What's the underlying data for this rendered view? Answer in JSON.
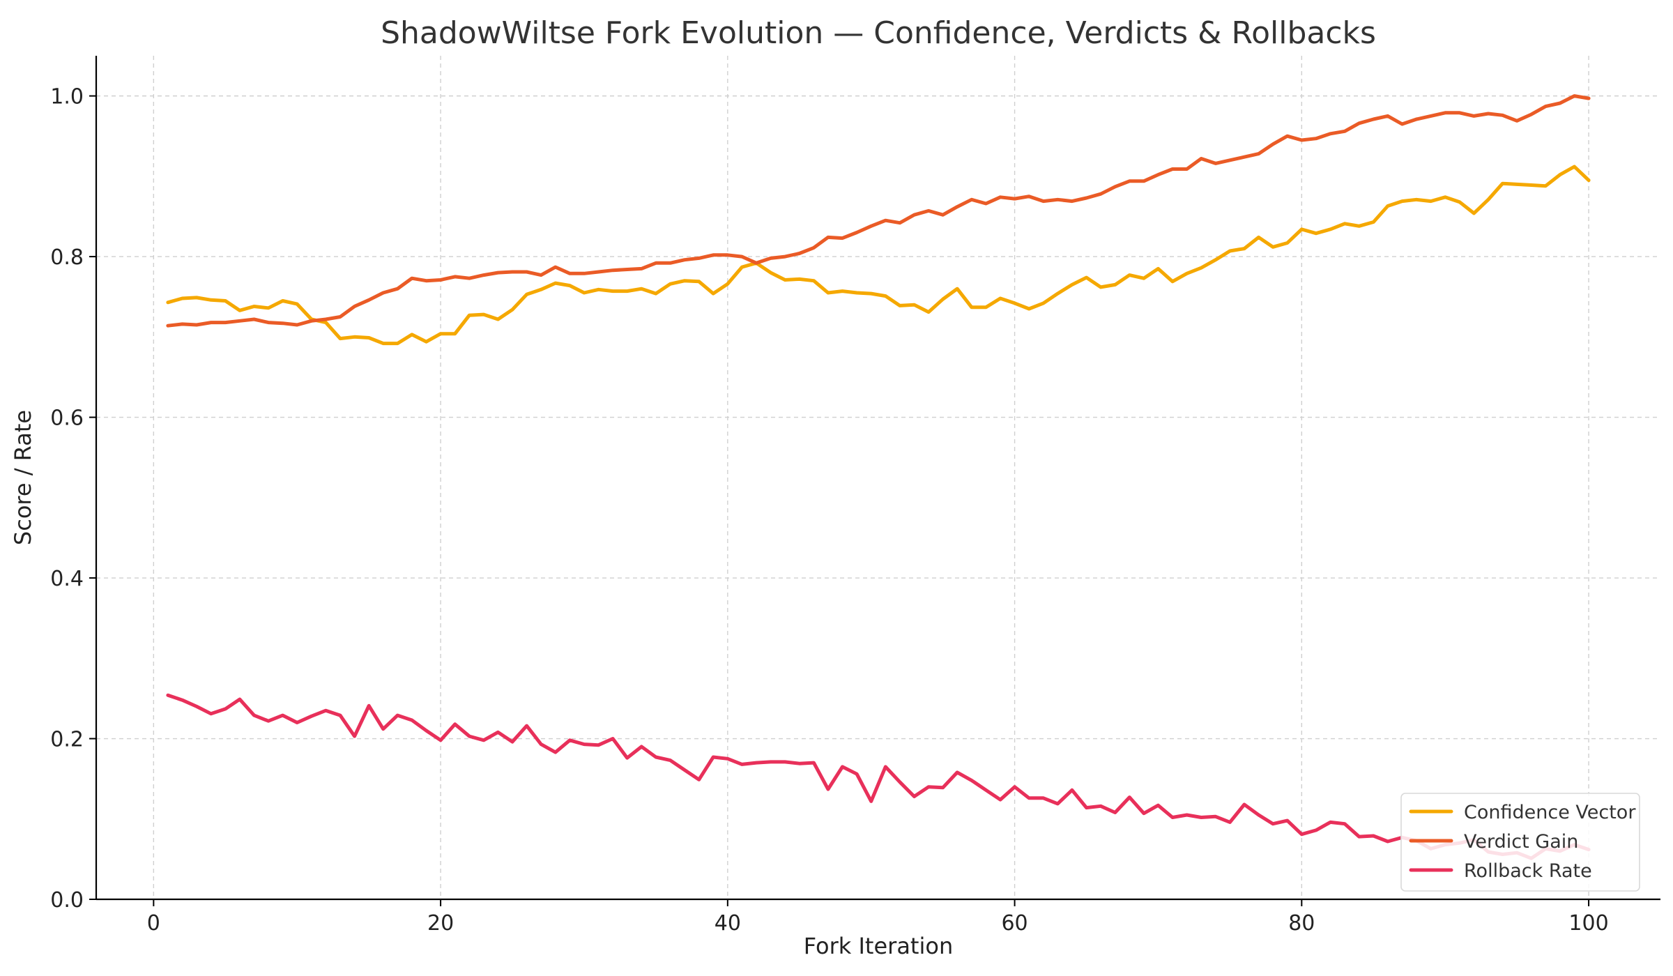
{
  "chart_data": {
    "type": "line",
    "title": "ShadowWiltse Fork Evolution — Confidence, Verdicts & Rollbacks",
    "xlabel": "Fork Iteration",
    "ylabel": "Score / Rate",
    "xlim": [
      -4,
      105
    ],
    "ylim": [
      0.0,
      1.05
    ],
    "xticks": [
      0,
      20,
      40,
      60,
      80,
      100
    ],
    "xtick_labels": [
      "0",
      "20",
      "40",
      "60",
      "80",
      "100"
    ],
    "yticks": [
      0.0,
      0.2,
      0.4,
      0.6,
      0.8,
      1.0
    ],
    "ytick_labels": [
      "0.0",
      "0.2",
      "0.4",
      "0.6",
      "0.8",
      "1.0"
    ],
    "grid": true,
    "legend_position": "lower-right",
    "x": [
      1,
      2,
      3,
      4,
      5,
      6,
      7,
      8,
      9,
      10,
      11,
      12,
      13,
      14,
      15,
      16,
      17,
      18,
      19,
      20,
      21,
      22,
      23,
      24,
      25,
      26,
      27,
      28,
      29,
      30,
      31,
      32,
      33,
      34,
      35,
      36,
      37,
      38,
      39,
      40,
      41,
      42,
      43,
      44,
      45,
      46,
      47,
      48,
      49,
      50,
      51,
      52,
      53,
      54,
      55,
      56,
      57,
      58,
      59,
      60,
      61,
      62,
      63,
      64,
      65,
      66,
      67,
      68,
      69,
      70,
      71,
      72,
      73,
      74,
      75,
      76,
      77,
      78,
      79,
      80,
      81,
      82,
      83,
      84,
      85,
      86,
      87,
      88,
      89,
      90,
      91,
      92,
      93,
      94,
      95,
      96,
      97,
      98,
      99,
      100
    ],
    "series": [
      {
        "name": "Confidence Vector",
        "color": "#f5a800",
        "values": [
          0.743,
          0.748,
          0.749,
          0.746,
          0.745,
          0.733,
          0.738,
          0.736,
          0.745,
          0.741,
          0.722,
          0.718,
          0.698,
          0.7,
          0.699,
          0.692,
          0.692,
          0.703,
          0.694,
          0.704,
          0.704,
          0.727,
          0.728,
          0.722,
          0.734,
          0.753,
          0.759,
          0.767,
          0.764,
          0.755,
          0.759,
          0.757,
          0.757,
          0.76,
          0.754,
          0.766,
          0.77,
          0.769,
          0.754,
          0.766,
          0.787,
          0.792,
          0.78,
          0.771,
          0.772,
          0.77,
          0.755,
          0.757,
          0.755,
          0.754,
          0.751,
          0.739,
          0.74,
          0.731,
          0.747,
          0.76,
          0.737,
          0.737,
          0.748,
          0.742,
          0.735,
          0.742,
          0.754,
          0.765,
          0.774,
          0.762,
          0.765,
          0.777,
          0.773,
          0.785,
          0.769,
          0.779,
          0.786,
          0.796,
          0.807,
          0.81,
          0.824,
          0.812,
          0.817,
          0.834,
          0.829,
          0.834,
          0.841,
          0.838,
          0.843,
          0.863,
          0.869,
          0.871,
          0.869,
          0.874,
          0.868,
          0.854,
          0.871,
          0.891,
          0.89,
          0.889,
          0.888,
          0.902,
          0.912,
          0.895
        ]
      },
      {
        "name": "Verdict Gain",
        "color": "#ea5b26",
        "values": [
          0.714,
          0.716,
          0.715,
          0.718,
          0.718,
          0.72,
          0.722,
          0.718,
          0.717,
          0.715,
          0.72,
          0.722,
          0.725,
          0.738,
          0.746,
          0.755,
          0.76,
          0.773,
          0.77,
          0.771,
          0.775,
          0.773,
          0.777,
          0.78,
          0.781,
          0.781,
          0.777,
          0.787,
          0.779,
          0.779,
          0.781,
          0.783,
          0.784,
          0.785,
          0.792,
          0.792,
          0.796,
          0.798,
          0.802,
          0.802,
          0.8,
          0.792,
          0.798,
          0.8,
          0.804,
          0.811,
          0.824,
          0.823,
          0.83,
          0.838,
          0.845,
          0.842,
          0.852,
          0.857,
          0.852,
          0.862,
          0.871,
          0.866,
          0.874,
          0.872,
          0.875,
          0.869,
          0.871,
          0.869,
          0.873,
          0.878,
          0.887,
          0.894,
          0.894,
          0.902,
          0.909,
          0.909,
          0.922,
          0.916,
          0.92,
          0.924,
          0.928,
          0.94,
          0.95,
          0.945,
          0.947,
          0.953,
          0.956,
          0.966,
          0.971,
          0.975,
          0.965,
          0.971,
          0.975,
          0.979,
          0.979,
          0.975,
          0.978,
          0.976,
          0.969,
          0.977,
          0.987,
          0.991,
          1.0,
          0.997
        ]
      },
      {
        "name": "Rollback Rate",
        "color": "#e8305a",
        "values": [
          0.254,
          0.248,
          0.24,
          0.231,
          0.237,
          0.249,
          0.229,
          0.222,
          0.229,
          0.22,
          0.228,
          0.235,
          0.229,
          0.203,
          0.241,
          0.212,
          0.229,
          0.223,
          0.21,
          0.198,
          0.218,
          0.203,
          0.198,
          0.208,
          0.196,
          0.216,
          0.193,
          0.183,
          0.198,
          0.193,
          0.192,
          0.2,
          0.176,
          0.19,
          0.177,
          0.173,
          0.161,
          0.149,
          0.177,
          0.175,
          0.168,
          0.17,
          0.171,
          0.171,
          0.169,
          0.17,
          0.137,
          0.165,
          0.156,
          0.122,
          0.165,
          0.146,
          0.128,
          0.14,
          0.139,
          0.158,
          0.148,
          0.136,
          0.124,
          0.14,
          0.126,
          0.126,
          0.119,
          0.136,
          0.114,
          0.116,
          0.108,
          0.127,
          0.107,
          0.117,
          0.102,
          0.105,
          0.102,
          0.103,
          0.096,
          0.118,
          0.105,
          0.094,
          0.098,
          0.081,
          0.086,
          0.096,
          0.094,
          0.078,
          0.079,
          0.072,
          0.077,
          0.073,
          0.063,
          0.068,
          0.07,
          0.074,
          0.059,
          0.056,
          0.058,
          0.051,
          0.063,
          0.06,
          0.068,
          0.062
        ]
      }
    ]
  }
}
